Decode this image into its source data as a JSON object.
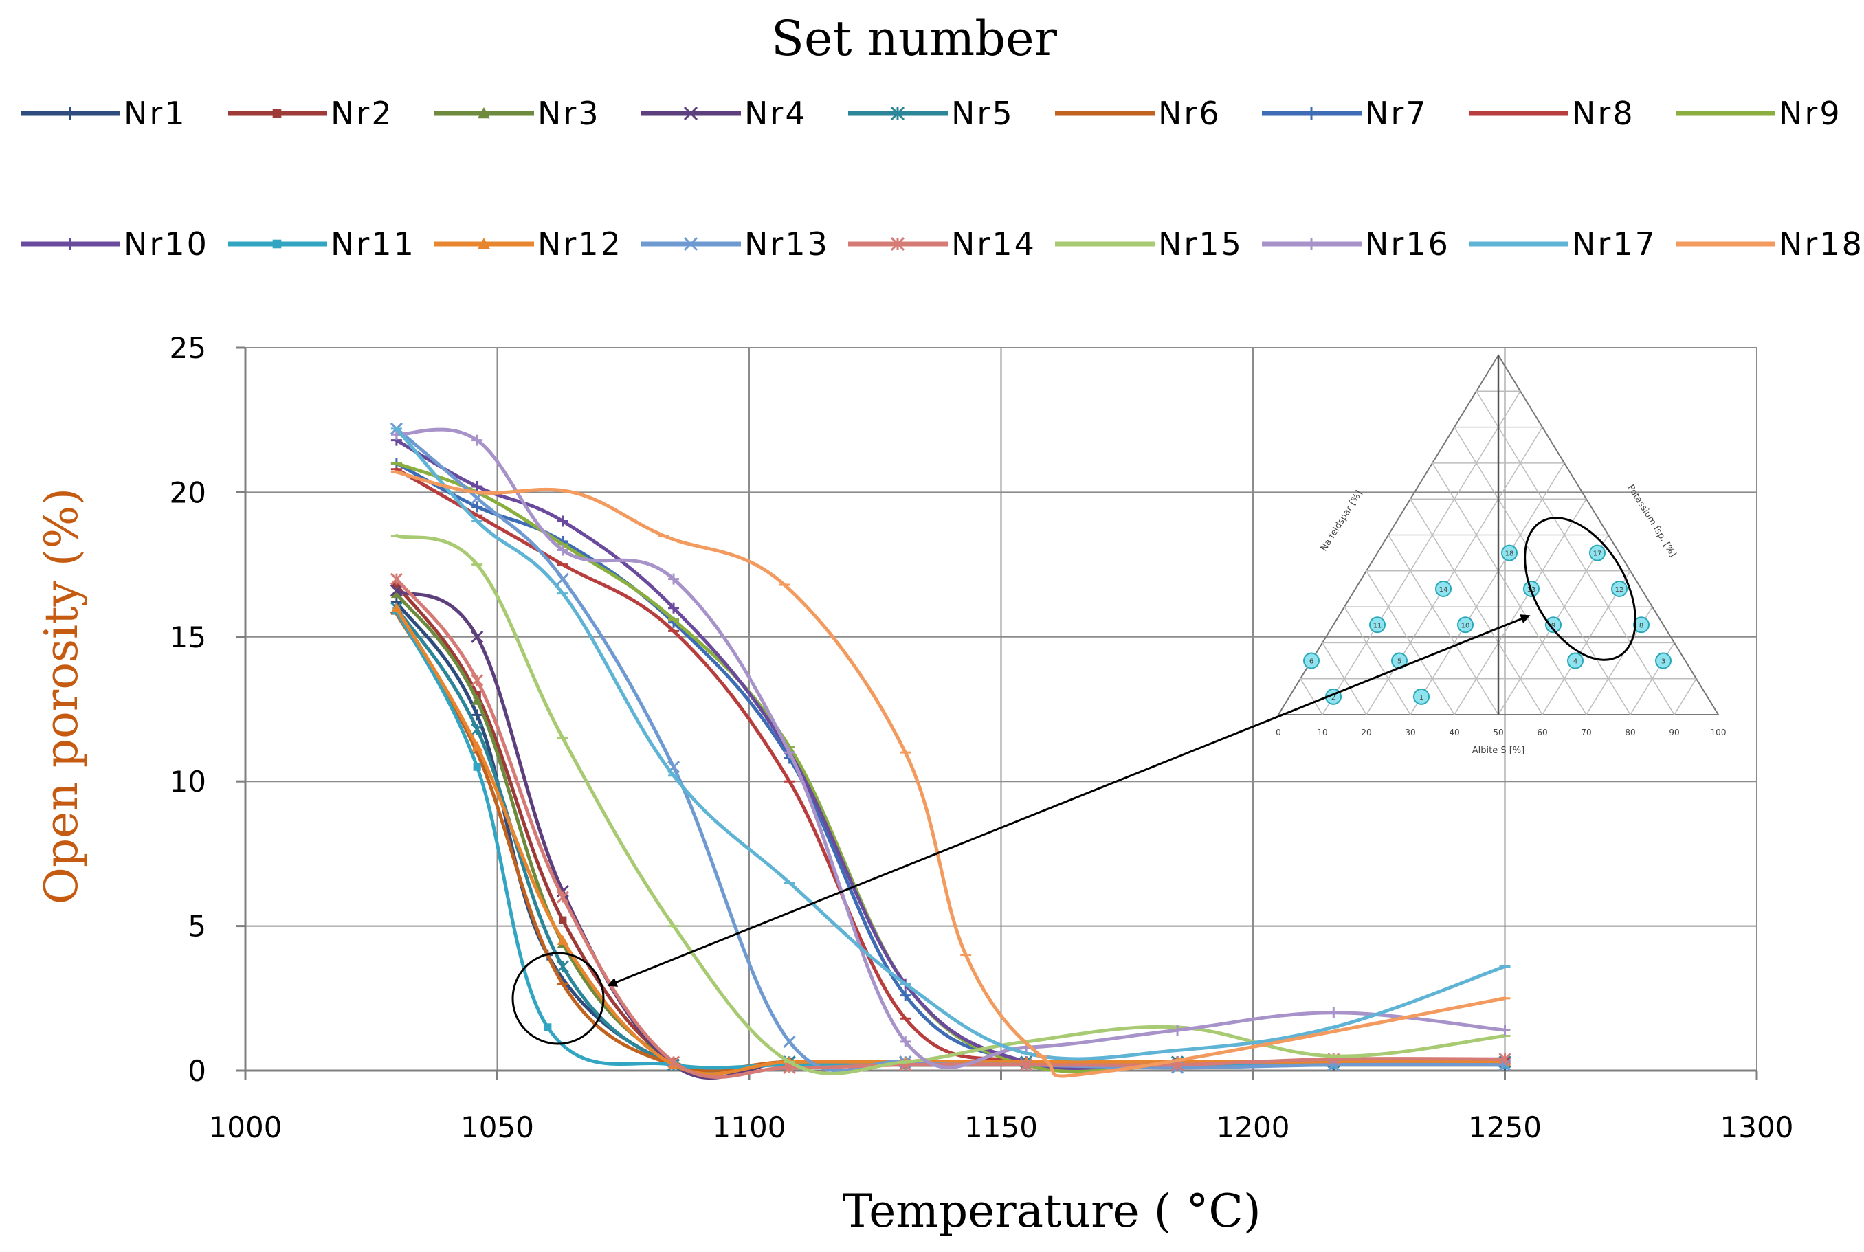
{
  "chart_data": {
    "type": "line",
    "title": "",
    "legend_title": "Set number",
    "xlabel": "Temperature ( °C)",
    "ylabel": "Open porosity (%)",
    "xlim": [
      1000,
      1300
    ],
    "ylim": [
      0,
      25
    ],
    "x_ticks": [
      "1000",
      "1050",
      "1100",
      "1150",
      "1200",
      "1250",
      "1300"
    ],
    "y_ticks": [
      "0",
      "5",
      "10",
      "15",
      "20",
      "25"
    ],
    "grid": true,
    "legend_position": "top",
    "series": [
      {
        "name": "Nr1",
        "color": "#2E4C7E",
        "marker": "plus",
        "x": [
          1030,
          1046,
          1060,
          1085,
          1108,
          1131,
          1155,
          1185,
          1216,
          1250
        ],
        "y": [
          16.2,
          12.3,
          4.0,
          0.2,
          0.3,
          0.2,
          0.2,
          0.2,
          0.2,
          0.2
        ]
      },
      {
        "name": "Nr2",
        "color": "#9E3A38",
        "marker": "square",
        "x": [
          1030,
          1046,
          1063,
          1085,
          1108,
          1131,
          1155,
          1185,
          1216,
          1250
        ],
        "y": [
          16.8,
          13.0,
          5.2,
          0.3,
          0.3,
          0.2,
          0.3,
          0.3,
          0.3,
          0.3
        ]
      },
      {
        "name": "Nr3",
        "color": "#6E8B3D",
        "marker": "triangle",
        "x": [
          1030,
          1046,
          1063,
          1085,
          1108,
          1131,
          1155,
          1185,
          1216,
          1250
        ],
        "y": [
          16.5,
          12.8,
          4.4,
          0.3,
          0.3,
          0.2,
          0.3,
          0.3,
          0.3,
          0.3
        ]
      },
      {
        "name": "Nr4",
        "color": "#5C3F7C",
        "marker": "x",
        "x": [
          1030,
          1046,
          1063,
          1085,
          1108,
          1131,
          1155,
          1185,
          1216,
          1250
        ],
        "y": [
          16.6,
          15.0,
          6.2,
          0.2,
          0.3,
          0.3,
          0.3,
          0.3,
          0.3,
          0.3
        ]
      },
      {
        "name": "Nr5",
        "color": "#2B8699",
        "marker": "asterisk",
        "x": [
          1030,
          1046,
          1063,
          1085,
          1108,
          1131,
          1155,
          1185,
          1216,
          1250
        ],
        "y": [
          16.0,
          11.8,
          3.6,
          0.2,
          0.3,
          0.3,
          0.3,
          0.3,
          0.3,
          0.3
        ]
      },
      {
        "name": "Nr6",
        "color": "#C1621F",
        "marker": "dash",
        "x": [
          1030,
          1046,
          1063,
          1085,
          1108,
          1131,
          1155,
          1185,
          1216,
          1250
        ],
        "y": [
          15.8,
          11.0,
          3.0,
          0.2,
          0.3,
          0.2,
          0.2,
          0.2,
          0.2,
          0.2
        ]
      },
      {
        "name": "Nr7",
        "color": "#3E6DB5",
        "marker": "plus",
        "x": [
          1030,
          1046,
          1063,
          1085,
          1108,
          1131,
          1155,
          1185,
          1216,
          1250
        ],
        "y": [
          21.0,
          19.5,
          18.3,
          15.5,
          10.8,
          2.6,
          0.3,
          0.3,
          0.3,
          0.3
        ]
      },
      {
        "name": "Nr8",
        "color": "#B83D3D",
        "marker": "dash",
        "x": [
          1030,
          1046,
          1063,
          1085,
          1108,
          1131,
          1155,
          1185,
          1216,
          1250
        ],
        "y": [
          20.8,
          19.2,
          17.5,
          15.2,
          10.0,
          1.8,
          0.3,
          0.3,
          0.3,
          0.4
        ]
      },
      {
        "name": "Nr9",
        "color": "#8BAF3E",
        "marker": "dash",
        "x": [
          1030,
          1046,
          1063,
          1085,
          1108,
          1131,
          1155,
          1185,
          1216,
          1250
        ],
        "y": [
          21.0,
          20.0,
          18.2,
          15.6,
          11.2,
          3.0,
          0.2,
          0.2,
          0.3,
          0.3
        ]
      },
      {
        "name": "Nr10",
        "color": "#6A4A9C",
        "marker": "plus",
        "x": [
          1030,
          1046,
          1063,
          1085,
          1108,
          1131,
          1155,
          1185,
          1216,
          1250
        ],
        "y": [
          21.8,
          20.2,
          19.0,
          16.0,
          11.0,
          3.0,
          0.3,
          0.3,
          0.3,
          0.3
        ]
      },
      {
        "name": "Nr11",
        "color": "#31A5C2",
        "marker": "square",
        "x": [
          1030,
          1046,
          1060,
          1085,
          1108,
          1131,
          1155,
          1185,
          1216,
          1250
        ],
        "y": [
          15.9,
          10.5,
          1.5,
          0.2,
          0.2,
          0.2,
          0.2,
          0.2,
          0.2,
          0.2
        ]
      },
      {
        "name": "Nr12",
        "color": "#E8852F",
        "marker": "triangle",
        "x": [
          1030,
          1046,
          1063,
          1085,
          1108,
          1131,
          1155,
          1185,
          1216,
          1250
        ],
        "y": [
          16.0,
          11.2,
          4.5,
          0.2,
          0.3,
          0.3,
          0.3,
          0.3,
          0.3,
          0.3
        ]
      },
      {
        "name": "Nr13",
        "color": "#6F9AD1",
        "marker": "x",
        "x": [
          1030,
          1046,
          1063,
          1085,
          1108,
          1131,
          1155,
          1185,
          1216,
          1250
        ],
        "y": [
          22.2,
          19.8,
          17.0,
          10.5,
          1.0,
          0.3,
          0.2,
          0.1,
          0.2,
          0.2
        ]
      },
      {
        "name": "Nr14",
        "color": "#D67A76",
        "marker": "asterisk",
        "x": [
          1030,
          1046,
          1063,
          1085,
          1108,
          1131,
          1155,
          1185,
          1216,
          1250
        ],
        "y": [
          17.0,
          13.5,
          6.0,
          0.3,
          0.1,
          0.2,
          0.2,
          0.2,
          0.4,
          0.4
        ]
      },
      {
        "name": "Nr15",
        "color": "#A8CA72",
        "marker": "dash",
        "x": [
          1030,
          1046,
          1063,
          1085,
          1108,
          1131,
          1155,
          1185,
          1216,
          1250
        ],
        "y": [
          18.5,
          17.5,
          11.5,
          5.0,
          0.3,
          0.3,
          1.0,
          1.5,
          0.5,
          1.2
        ]
      },
      {
        "name": "Nr16",
        "color": "#A793C9",
        "marker": "plus",
        "x": [
          1030,
          1046,
          1063,
          1085,
          1108,
          1131,
          1155,
          1185,
          1216,
          1250
        ],
        "y": [
          22.0,
          21.8,
          18.0,
          17.0,
          11.0,
          1.0,
          0.8,
          1.4,
          2.0,
          1.4
        ]
      },
      {
        "name": "Nr17",
        "color": "#5FB4D6",
        "marker": "dash",
        "x": [
          1030,
          1046,
          1063,
          1085,
          1108,
          1131,
          1155,
          1185,
          1216,
          1250
        ],
        "y": [
          22.2,
          19.0,
          16.5,
          10.2,
          6.5,
          3.0,
          0.6,
          0.7,
          1.5,
          3.6
        ]
      },
      {
        "name": "Nr18",
        "color": "#F39A5E",
        "marker": "dash",
        "x": [
          1030,
          1046,
          1065,
          1083,
          1107,
          1131,
          1143,
          1158,
          1172,
          1250
        ],
        "y": [
          20.7,
          20.0,
          20.0,
          18.5,
          16.8,
          11.0,
          4.0,
          0.5,
          0.0,
          2.5
        ]
      }
    ],
    "annotations": [
      "circle around steep-drop curves near 1060 °C",
      "arrow linking the circled curves to a region of the inset ternary diagram"
    ],
    "inset": {
      "type": "ternary",
      "bottom_axis": "Albite S [%]",
      "left_axis": "Na feldspar [%]",
      "right_axis": "Potassium fsp. [%]",
      "tick_labels": [
        "0",
        "10",
        "20",
        "30",
        "40",
        "50",
        "60",
        "70",
        "80",
        "90",
        "100"
      ],
      "points": [
        "18",
        "17",
        "14",
        "13",
        "12",
        "11",
        "10",
        "9",
        "8",
        "6",
        "5",
        "4",
        "3",
        "2",
        "1"
      ]
    }
  }
}
